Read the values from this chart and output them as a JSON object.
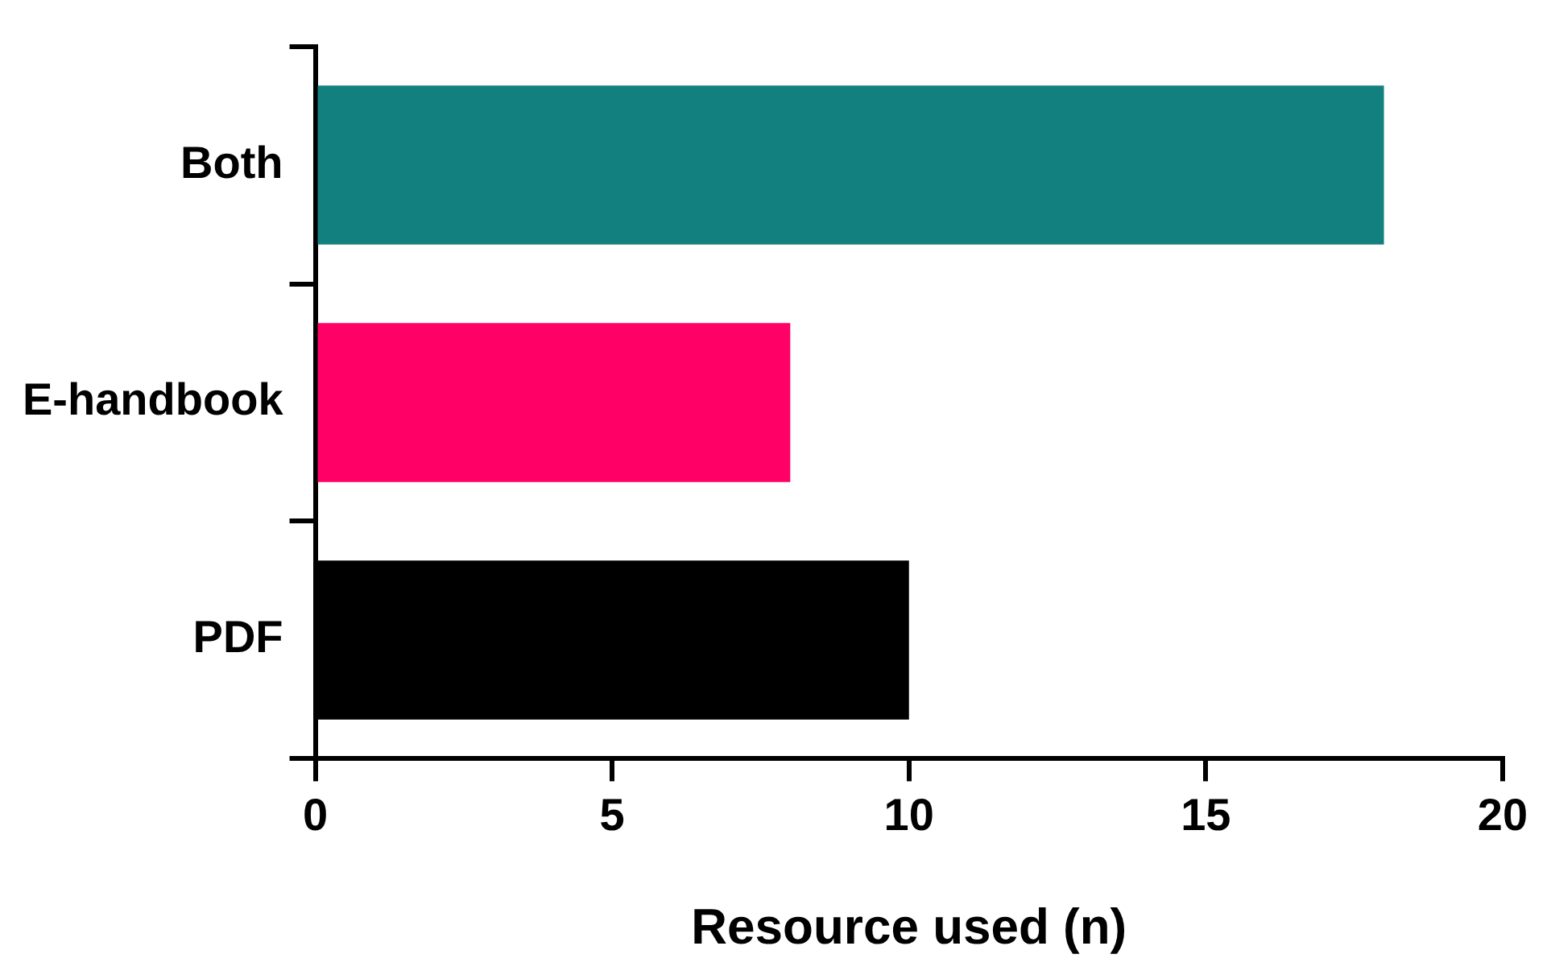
{
  "chart_data": {
    "type": "bar",
    "orientation": "horizontal",
    "xlabel": "Resource used (n)",
    "categories": [
      "Both",
      "E-handbook",
      "PDF"
    ],
    "series": [
      {
        "values": [
          18,
          8,
          10
        ],
        "colors": [
          "#138080",
          "#ff0066",
          "#000000"
        ]
      }
    ],
    "xlim": [
      0,
      20
    ],
    "xticks": [
      0,
      5,
      10,
      15,
      20
    ]
  }
}
